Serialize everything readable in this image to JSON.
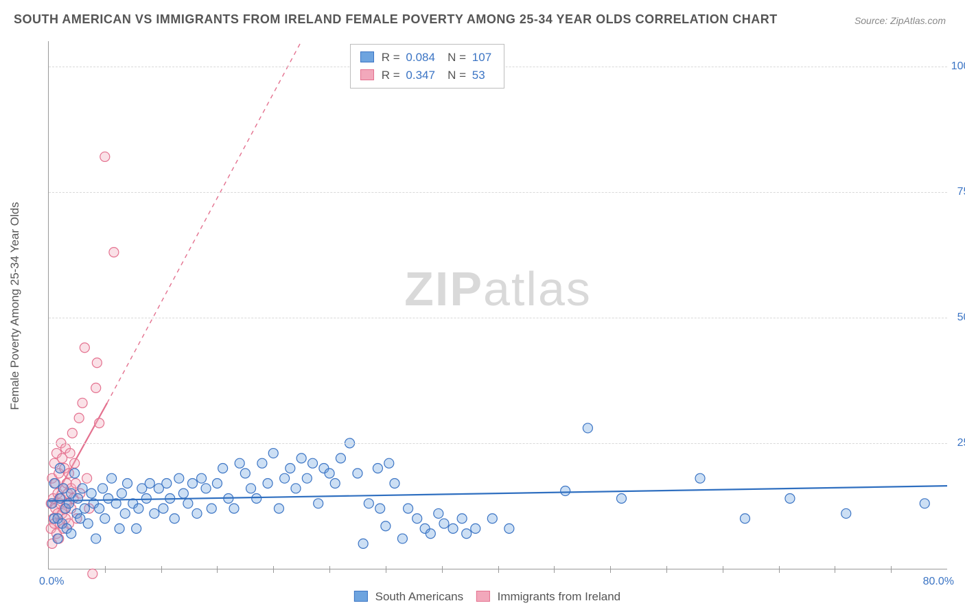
{
  "title": "SOUTH AMERICAN VS IMMIGRANTS FROM IRELAND FEMALE POVERTY AMONG 25-34 YEAR OLDS CORRELATION CHART",
  "source": "Source: ZipAtlas.com",
  "y_axis_label": "Female Poverty Among 25-34 Year Olds",
  "watermark_bold": "ZIP",
  "watermark_rest": "atlas",
  "chart": {
    "type": "scatter",
    "xlim": [
      0,
      80
    ],
    "ylim": [
      0,
      105
    ],
    "x_origin_label": "0.0%",
    "x_max_label": "80.0%",
    "y_ticks": [
      25,
      50,
      75,
      100
    ],
    "y_tick_labels": [
      "25.0%",
      "50.0%",
      "75.0%",
      "100.0%"
    ],
    "x_minor_ticks": [
      5,
      10,
      15,
      20,
      25,
      30,
      35,
      40,
      45,
      50,
      55,
      60,
      65,
      70,
      75
    ],
    "background_color": "#ffffff",
    "grid_color": "#d8d8d8",
    "axis_color": "#999999",
    "tick_label_color": "#3b74c4",
    "marker_radius": 7,
    "marker_fill_opacity": 0.35
  },
  "series": {
    "blue": {
      "label": "South Americans",
      "fill": "#6ea4df",
      "stroke": "#3b74c4",
      "R": "0.084",
      "N": "107",
      "trend": {
        "x1": 0,
        "y1": 13.5,
        "x2": 80,
        "y2": 16.5,
        "color": "#2f6fc0",
        "width": 2.2
      },
      "points": [
        [
          0.3,
          13
        ],
        [
          0.5,
          17
        ],
        [
          0.5,
          10
        ],
        [
          0.8,
          10
        ],
        [
          0.8,
          6
        ],
        [
          1.0,
          14
        ],
        [
          1.0,
          20
        ],
        [
          1.2,
          9
        ],
        [
          1.3,
          16
        ],
        [
          1.5,
          12
        ],
        [
          1.6,
          8
        ],
        [
          1.8,
          13
        ],
        [
          2.0,
          15
        ],
        [
          2.0,
          7
        ],
        [
          2.3,
          19
        ],
        [
          2.5,
          11
        ],
        [
          2.6,
          14
        ],
        [
          2.8,
          10
        ],
        [
          3.0,
          16
        ],
        [
          3.2,
          12
        ],
        [
          3.5,
          9
        ],
        [
          3.8,
          15
        ],
        [
          4.0,
          13
        ],
        [
          4.2,
          6
        ],
        [
          4.5,
          12
        ],
        [
          4.8,
          16
        ],
        [
          5.0,
          10
        ],
        [
          5.3,
          14
        ],
        [
          5.6,
          18
        ],
        [
          6.0,
          13
        ],
        [
          6.3,
          8
        ],
        [
          6.5,
          15
        ],
        [
          6.8,
          11
        ],
        [
          7.0,
          17
        ],
        [
          7.5,
          13
        ],
        [
          7.8,
          8
        ],
        [
          8.0,
          12
        ],
        [
          8.3,
          16
        ],
        [
          8.7,
          14
        ],
        [
          9.0,
          17
        ],
        [
          9.4,
          11
        ],
        [
          9.8,
          16
        ],
        [
          10.2,
          12
        ],
        [
          10.5,
          17
        ],
        [
          10.8,
          14
        ],
        [
          11.2,
          10
        ],
        [
          11.6,
          18
        ],
        [
          12.0,
          15
        ],
        [
          12.4,
          13
        ],
        [
          12.8,
          17
        ],
        [
          13.2,
          11
        ],
        [
          13.6,
          18
        ],
        [
          14.0,
          16
        ],
        [
          14.5,
          12
        ],
        [
          15.0,
          17
        ],
        [
          15.5,
          20
        ],
        [
          16.0,
          14
        ],
        [
          16.5,
          12
        ],
        [
          17.0,
          21
        ],
        [
          17.5,
          19
        ],
        [
          18.0,
          16
        ],
        [
          18.5,
          14
        ],
        [
          19.0,
          21
        ],
        [
          19.5,
          17
        ],
        [
          20.0,
          23
        ],
        [
          20.5,
          12
        ],
        [
          21.0,
          18
        ],
        [
          21.5,
          20
        ],
        [
          22.0,
          16
        ],
        [
          22.5,
          22
        ],
        [
          23.0,
          18
        ],
        [
          23.5,
          21
        ],
        [
          24.0,
          13
        ],
        [
          24.5,
          20
        ],
        [
          25.0,
          19
        ],
        [
          25.5,
          17
        ],
        [
          26.0,
          22
        ],
        [
          26.8,
          25
        ],
        [
          27.5,
          19
        ],
        [
          28.0,
          5
        ],
        [
          28.5,
          13
        ],
        [
          29.3,
          20
        ],
        [
          29.5,
          12
        ],
        [
          30.0,
          8.5
        ],
        [
          30.3,
          21
        ],
        [
          30.8,
          17
        ],
        [
          31.5,
          6
        ],
        [
          32.0,
          12
        ],
        [
          32.8,
          10
        ],
        [
          33.5,
          8
        ],
        [
          34.0,
          7
        ],
        [
          34.7,
          11
        ],
        [
          35.2,
          9
        ],
        [
          36.0,
          8
        ],
        [
          36.8,
          10
        ],
        [
          37.2,
          7
        ],
        [
          38.0,
          8
        ],
        [
          39.5,
          10
        ],
        [
          41,
          8
        ],
        [
          46,
          15.5
        ],
        [
          48,
          28
        ],
        [
          51,
          14
        ],
        [
          58,
          18
        ],
        [
          62,
          10
        ],
        [
          66,
          14
        ],
        [
          71,
          11
        ],
        [
          78,
          13
        ]
      ]
    },
    "pink": {
      "label": "Immigrants from Ireland",
      "fill": "#f2a8bb",
      "stroke": "#e4718f",
      "R": "0.347",
      "N": "53",
      "trend_solid": {
        "x1": 0,
        "y1": 12,
        "x2": 5.2,
        "y2": 33,
        "color": "#e4718f",
        "width": 2.2
      },
      "trend_dash": {
        "x1": 5.2,
        "y1": 33,
        "x2": 22.5,
        "y2": 105,
        "color": "#e4718f",
        "width": 1.4,
        "dash": "6,6"
      },
      "points": [
        [
          0.2,
          8
        ],
        [
          0.2,
          13
        ],
        [
          0.3,
          18
        ],
        [
          0.3,
          5
        ],
        [
          0.4,
          10
        ],
        [
          0.4,
          14
        ],
        [
          0.5,
          21
        ],
        [
          0.5,
          9
        ],
        [
          0.6,
          12
        ],
        [
          0.6,
          17
        ],
        [
          0.7,
          7
        ],
        [
          0.7,
          23
        ],
        [
          0.8,
          11
        ],
        [
          0.8,
          15
        ],
        [
          0.9,
          19
        ],
        [
          0.9,
          6
        ],
        [
          1.0,
          13
        ],
        [
          1.0,
          9
        ],
        [
          1.1,
          25
        ],
        [
          1.1,
          14
        ],
        [
          1.2,
          22
        ],
        [
          1.2,
          11
        ],
        [
          1.3,
          16
        ],
        [
          1.3,
          8
        ],
        [
          1.4,
          20
        ],
        [
          1.4,
          12
        ],
        [
          1.5,
          24
        ],
        [
          1.5,
          10
        ],
        [
          1.6,
          17
        ],
        [
          1.6,
          13
        ],
        [
          1.7,
          15
        ],
        [
          1.8,
          19
        ],
        [
          1.8,
          9
        ],
        [
          1.9,
          23
        ],
        [
          2.0,
          12
        ],
        [
          2.0,
          16
        ],
        [
          2.1,
          27
        ],
        [
          2.2,
          14
        ],
        [
          2.3,
          21
        ],
        [
          2.4,
          17
        ],
        [
          2.5,
          10
        ],
        [
          2.7,
          30
        ],
        [
          2.8,
          15
        ],
        [
          3.0,
          33
        ],
        [
          3.2,
          44
        ],
        [
          3.4,
          18
        ],
        [
          3.6,
          12
        ],
        [
          3.9,
          -1
        ],
        [
          4.2,
          36
        ],
        [
          4.3,
          41
        ],
        [
          5.8,
          63
        ],
        [
          5.0,
          82
        ],
        [
          4.5,
          29
        ]
      ]
    }
  },
  "stats_labels": {
    "R": "R =",
    "N": "N ="
  },
  "bottom_legend_order": [
    "blue",
    "pink"
  ]
}
